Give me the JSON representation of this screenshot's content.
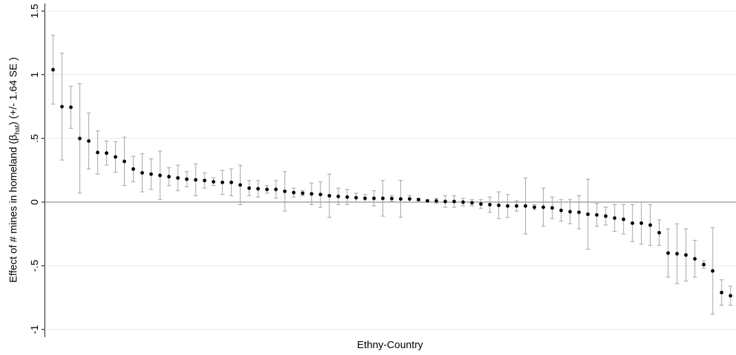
{
  "chart_data": {
    "type": "errorbar",
    "ylabel_parts": [
      "Effect of # mines in homeland (β",
      "hat",
      ") (+/- 1.64 SE )"
    ],
    "xlabel": "Ethny-Country",
    "ylim": [
      -1.06,
      1.56
    ],
    "yticks": [
      -1,
      {
        "value": -0.5,
        "label": "-.5"
      },
      0,
      {
        "value": 0.5,
        "label": ".5"
      },
      1,
      1.5
    ],
    "grid": true,
    "zero_line": true,
    "point_color": "#000000",
    "bar_color": "#a0a0a0",
    "values": [
      1.04,
      0.75,
      0.745,
      0.5,
      0.48,
      0.39,
      0.385,
      0.355,
      0.32,
      0.26,
      0.23,
      0.22,
      0.21,
      0.2,
      0.19,
      0.18,
      0.175,
      0.17,
      0.16,
      0.155,
      0.155,
      0.135,
      0.11,
      0.105,
      0.1,
      0.1,
      0.085,
      0.075,
      0.07,
      0.065,
      0.06,
      0.05,
      0.045,
      0.04,
      0.035,
      0.03,
      0.03,
      0.03,
      0.028,
      0.025,
      0.025,
      0.02,
      0.01,
      0.01,
      0.005,
      0.005,
      0,
      -0.005,
      -0.015,
      -0.02,
      -0.025,
      -0.03,
      -0.03,
      -0.03,
      -0.04,
      -0.04,
      -0.045,
      -0.065,
      -0.075,
      -0.08,
      -0.095,
      -0.1,
      -0.11,
      -0.125,
      -0.135,
      -0.165,
      -0.165,
      -0.18,
      -0.24,
      -0.4,
      -0.405,
      -0.415,
      -0.445,
      -0.49,
      -0.54,
      -0.71,
      -0.735
    ],
    "errors": [
      0.27,
      0.42,
      0.165,
      0.43,
      0.22,
      0.17,
      0.095,
      0.12,
      0.19,
      0.1,
      0.15,
      0.12,
      0.19,
      0.07,
      0.1,
      0.06,
      0.125,
      0.06,
      0.03,
      0.095,
      0.105,
      0.155,
      0.06,
      0.065,
      0.03,
      0.07,
      0.155,
      0.035,
      0.02,
      0.085,
      0.1,
      0.17,
      0.065,
      0.06,
      0.035,
      0.03,
      0.06,
      0.14,
      0.022,
      0.145,
      0.025,
      0.01,
      0.01,
      0.02,
      0.045,
      0.045,
      0.03,
      0.025,
      0.035,
      0.06,
      0.105,
      0.09,
      0.04,
      0.22,
      0.02,
      0.15,
      0.085,
      0.085,
      0.095,
      0.13,
      0.275,
      0.09,
      0.07,
      0.105,
      0.115,
      0.145,
      0.165,
      0.16,
      0.1,
      0.19,
      0.235,
      0.205,
      0.145,
      0.03,
      0.34,
      0.1,
      0.075
    ]
  }
}
